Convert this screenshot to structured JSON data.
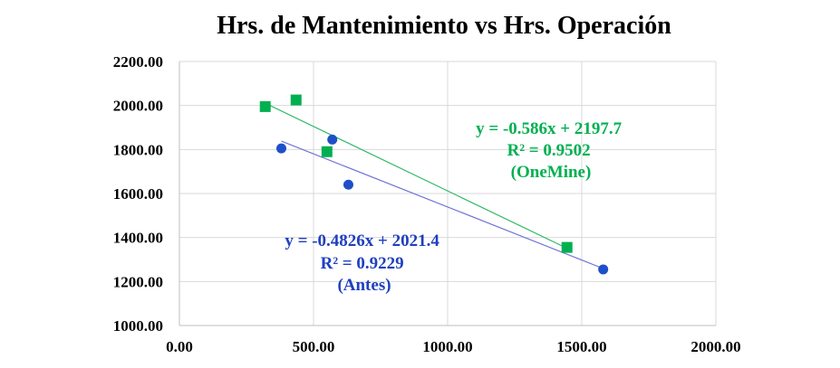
{
  "chart_data": {
    "type": "scatter",
    "title": "Hrs. de Mantenimiento vs Hrs. Operación",
    "xlabel": "",
    "ylabel": "",
    "xlim": [
      0,
      2000
    ],
    "ylim": [
      1000,
      2200
    ],
    "x_ticks": [
      "0.00",
      "500.00",
      "1000.00",
      "1500.00",
      "2000.00"
    ],
    "y_ticks": [
      "1000.00",
      "1200.00",
      "1400.00",
      "1600.00",
      "1800.00",
      "2000.00",
      "2200.00"
    ],
    "grid": true,
    "series": [
      {
        "marker": "square",
        "color": "#00b050",
        "points": [
          [
            320,
            1995
          ],
          [
            435,
            2025
          ],
          [
            550,
            1790
          ],
          [
            1445,
            1355
          ]
        ],
        "trendline": {
          "slope": -0.586,
          "intercept": 2197.7,
          "x_range": [
            320,
            1445
          ]
        },
        "annotation": [
          "y = -0.586x + 2197.7",
          "R² = 0.9502",
          "(OneMine)"
        ]
      },
      {
        "marker": "circle",
        "color": "#1f4fc8",
        "points": [
          [
            380,
            1805
          ],
          [
            570,
            1845
          ],
          [
            630,
            1640
          ],
          [
            1580,
            1255
          ]
        ],
        "trendline": {
          "slope": -0.4826,
          "intercept": 2021.4,
          "x_range": [
            380,
            1580
          ]
        },
        "annotation": [
          "y = -0.4826x + 2021.4",
          "R² = 0.9229",
          "(Antes)"
        ]
      }
    ]
  }
}
